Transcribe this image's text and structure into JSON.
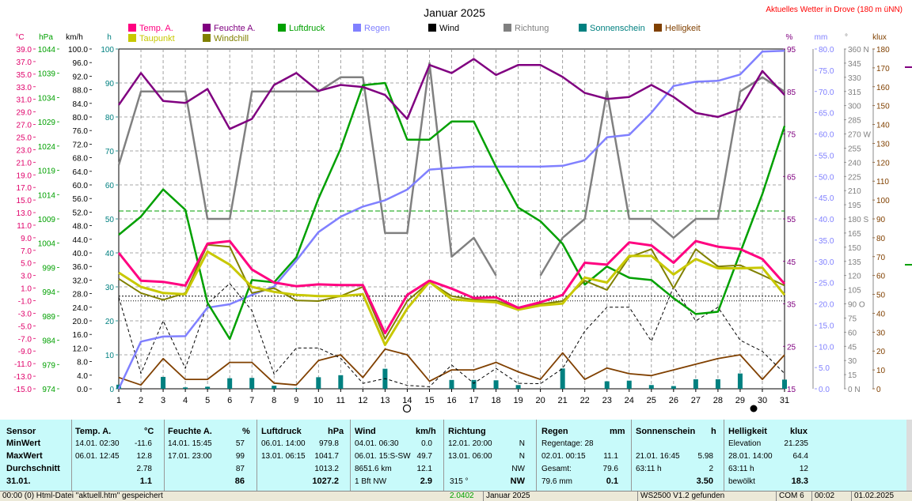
{
  "header": {
    "title": "Januar 2025",
    "station": "Aktuelles Wetter in Drove (180 m üNN)"
  },
  "legend": [
    {
      "label": "Temp. A.",
      "color": "#ff0080"
    },
    {
      "label": "Taupunkt",
      "color": "#c8c800"
    },
    {
      "label": "Feuchte A.",
      "color": "#800080"
    },
    {
      "label": "Windchill",
      "color": "#808000"
    },
    {
      "label": "Luftdruck",
      "color": "#00a000"
    },
    {
      "label": "Regen",
      "color": "#8080ff"
    },
    {
      "label": "Wind",
      "color": "#000000"
    },
    {
      "label": "Richtung",
      "color": "#808080"
    },
    {
      "label": "Sonnenschein",
      "color": "#008080"
    },
    {
      "label": "Helligkeit",
      "color": "#804000"
    }
  ],
  "axes": {
    "left": [
      {
        "unit": "°C",
        "color": "#e0006a",
        "ticks": [
          "39.0",
          "37.0",
          "35.0",
          "33.0",
          "31.0",
          "29.0",
          "27.0",
          "25.0",
          "23.0",
          "21.0",
          "19.0",
          "17.0",
          "15.0",
          "13.0",
          "11.0",
          "9.0",
          "7.0",
          "5.0",
          "3.0",
          "1.0",
          "-1.0",
          "-3.0",
          "-5.0",
          "-7.0",
          "-9.0",
          "-11.0",
          "-13.0",
          "-15.0"
        ]
      },
      {
        "unit": "hPa",
        "color": "#00a000",
        "ticks": [
          "1044",
          "1039",
          "1034",
          "1029",
          "1024",
          "1019",
          "1014",
          "1009",
          "1004",
          "999",
          "994",
          "989",
          "984",
          "979",
          "974"
        ]
      },
      {
        "unit": "km/h",
        "color": "#000000",
        "ticks": [
          "100.0",
          "96.0",
          "92.0",
          "88.0",
          "84.0",
          "80.0",
          "76.0",
          "72.0",
          "68.0",
          "64.0",
          "60.0",
          "56.0",
          "52.0",
          "48.0",
          "44.0",
          "40.0",
          "36.0",
          "32.0",
          "28.0",
          "24.0",
          "20.0",
          "16.0",
          "12.0",
          "8.0",
          "4.0",
          "0.0"
        ]
      },
      {
        "unit": "h",
        "color": "#008080",
        "ticks": [
          "100",
          "90",
          "80",
          "70",
          "60",
          "50",
          "40",
          "30",
          "20",
          "10",
          "0"
        ]
      }
    ],
    "right": [
      {
        "unit": "%",
        "color": "#800080",
        "ticks": [
          "95",
          "85",
          "75",
          "65",
          "55",
          "45",
          "35",
          "25",
          "15"
        ]
      },
      {
        "unit": "mm",
        "color": "#8080ff",
        "ticks": [
          "80.0",
          "75.0",
          "70.0",
          "65.0",
          "60.0",
          "55.0",
          "50.0",
          "45.0",
          "40.0",
          "35.0",
          "30.0",
          "25.0",
          "20.0",
          "15.0",
          "10.0",
          "5.0",
          "0.0"
        ]
      },
      {
        "unit": "°",
        "color": "#808080",
        "ticks": [
          "360 N",
          "345",
          "330",
          "315",
          "300",
          "285",
          "270 W",
          "255",
          "240",
          "225",
          "210",
          "195",
          "180 S",
          "165",
          "150",
          "135",
          "120",
          "105",
          "90 O",
          "75",
          "60",
          "45",
          "30",
          "15",
          "0 N"
        ]
      },
      {
        "unit": "klux",
        "color": "#804000",
        "ticks": [
          "180",
          "170",
          "160",
          "150",
          "140",
          "130",
          "120",
          "110",
          "100",
          "90",
          "80",
          "70",
          "60",
          "50",
          "40",
          "30",
          "20",
          "10",
          "0"
        ]
      }
    ]
  },
  "chart_data": {
    "type": "line",
    "title": "Januar 2025",
    "x": [
      1,
      2,
      3,
      4,
      5,
      6,
      7,
      8,
      9,
      10,
      11,
      12,
      13,
      14,
      15,
      16,
      17,
      18,
      19,
      20,
      21,
      22,
      23,
      24,
      25,
      26,
      27,
      28,
      29,
      30,
      31
    ],
    "series": [
      {
        "name": "Temp. A.",
        "axis": "°C",
        "values": [
          7,
          2.5,
          2.3,
          1.7,
          8.5,
          8.9,
          4.3,
          2.2,
          1.6,
          1.9,
          1.8,
          1.8,
          -6,
          0.2,
          2.5,
          1.2,
          -0.3,
          -0.2,
          -1.9,
          -1,
          0.2,
          5.4,
          5.1,
          8.7,
          8.2,
          5.4,
          8.9,
          8,
          7.6,
          6,
          2
        ]
      },
      {
        "name": "Taupunkt",
        "axis": "°C",
        "values": [
          3.8,
          1.5,
          0.5,
          0.3,
          7.2,
          5.1,
          1.5,
          0.7,
          0.2,
          0,
          0,
          0.3,
          -7.9,
          -2,
          2.3,
          -0.5,
          -0.8,
          -1,
          -2.2,
          -1.5,
          -1.2,
          3,
          2.2,
          6.5,
          6.5,
          3.5,
          6,
          4.5,
          4.5,
          4.6,
          0.2
        ]
      },
      {
        "name": "Windchill",
        "axis": "°C",
        "values": [
          2.8,
          0.5,
          -0.6,
          0.5,
          8.3,
          8,
          0.5,
          1.3,
          -0.7,
          -0.8,
          0,
          1.5,
          -6.9,
          -0.8,
          2.3,
          0,
          -0.6,
          -0.7,
          -2,
          -1.3,
          -0.8,
          2.5,
          1,
          6.3,
          7.6,
          1.3,
          7.6,
          4.8,
          5,
          3.4,
          1.7
        ]
      },
      {
        "name": "Feuchte A.",
        "axis": "%",
        "values": [
          86,
          94,
          87,
          86.5,
          90,
          80,
          82.5,
          91,
          94,
          89.5,
          91,
          90.5,
          88.5,
          82.5,
          96,
          94,
          97.5,
          93.5,
          96,
          96,
          93,
          89,
          87.5,
          88,
          91,
          88,
          84,
          83,
          85,
          94.5,
          88.5
        ]
      },
      {
        "name": "Luftdruck",
        "axis": "hPa",
        "values": [
          1008,
          1012,
          1018,
          1013.5,
          993,
          985,
          998,
          997.5,
          1003,
          1016,
          1027,
          1041,
          1041.5,
          1029,
          1029,
          1033,
          1033,
          1023,
          1014,
          1011,
          1006,
          997,
          1001,
          998.5,
          998,
          994,
          990.5,
          991,
          1004,
          1017,
          1032
        ]
      },
      {
        "name": "Regen",
        "axis": "mm",
        "values": [
          0,
          11.1,
          12.3,
          12.4,
          19.1,
          19.9,
          22.1,
          24.1,
          30.2,
          36.9,
          40.5,
          42.9,
          44.4,
          46.9,
          51.6,
          52,
          52.3,
          52.3,
          52.3,
          52.3,
          52.5,
          53.8,
          59.2,
          59.8,
          65,
          71.3,
          72.3,
          72.5,
          74,
          79.4,
          79.6
        ]
      },
      {
        "name": "Wind",
        "axis": "km/h",
        "values": [
          27,
          4.5,
          20,
          6,
          25,
          31,
          23,
          4.3,
          12,
          12,
          9,
          1.6,
          3,
          1,
          0.6,
          7,
          1.6,
          6,
          1.6,
          1.5,
          6,
          17,
          24,
          24,
          14,
          30,
          20,
          24,
          14.3,
          11,
          4.5
        ]
      },
      {
        "name": "Richtung",
        "axis": "°",
        "values": [
          237,
          315,
          315,
          315,
          180,
          180,
          315,
          315,
          315,
          315,
          330,
          330,
          165,
          165,
          345,
          140,
          160,
          120,
          null,
          120,
          160,
          180,
          315,
          180,
          180,
          160,
          180,
          180,
          315,
          330,
          315
        ]
      },
      {
        "name": "Sonnenschein",
        "axis": "h",
        "values": [
          1.2,
          0,
          3.5,
          0.4,
          0.6,
          3.1,
          3.2,
          0.9,
          0.2,
          3.4,
          4,
          0,
          5.9,
          0,
          0,
          2.6,
          2.6,
          2.5,
          1.1,
          0,
          5.98,
          0,
          2.2,
          2.4,
          1.1,
          0.8,
          2.8,
          2.8,
          4.5,
          0,
          2.7
        ]
      },
      {
        "name": "Helligkeit",
        "axis": "klux",
        "values": [
          6,
          2,
          16,
          5,
          5,
          14,
          14,
          3,
          2,
          15,
          18,
          6,
          21,
          18,
          4,
          10,
          10,
          14,
          9,
          5,
          19,
          5,
          11,
          8,
          7,
          10,
          13,
          16,
          18,
          5,
          18
        ]
      }
    ],
    "ylim_temp": [
      -15,
      40
    ],
    "ylim_pressure": [
      974,
      1049
    ],
    "ylim_wind": [
      0,
      100
    ],
    "ylim_humidity": [
      15,
      100
    ],
    "ylim_rain": [
      0,
      80
    ],
    "ylim_direction": [
      0,
      360
    ],
    "ylim_lux": [
      0,
      180
    ],
    "freezing_line_temp": 0,
    "reference_pressure": 1013.25,
    "grid": true
  },
  "table": {
    "sensor": {
      "h": "Sensor",
      "r1": "MinWert",
      "r2": "MaxWert",
      "r3": "Durchschnitt",
      "r4": "31.01."
    },
    "temp": {
      "h": "Temp. A.",
      "u": "°C",
      "r1d": "14.01.  02:30",
      "r1v": "-11.6",
      "r2d": "06.01.  12:45",
      "r2v": "12.8",
      "r3v": "2.78",
      "r4v": "1.1"
    },
    "hum": {
      "h": "Feuchte A.",
      "u": "%",
      "r1d": "14.01.  15:45",
      "r1v": "57",
      "r2d": "17.01.  23:00",
      "r2v": "99",
      "r3v": "87",
      "r4v": "86"
    },
    "press": {
      "h": "Luftdruck",
      "u": "hPa",
      "r1d": "06.01.  14:00",
      "r1v": "979.8",
      "r2d": "13.01.  06:15",
      "r2v": "1041.7",
      "r3v": "1013.2",
      "r4v": "1027.2"
    },
    "wind": {
      "h": "Wind",
      "u": "km/h",
      "r1d": "04.01.  06:30",
      "r1v": "0.0",
      "r2d": "06.01.  15:S-SW",
      "r2v": "49.7",
      "r3d": "8651.6 km",
      "r3v": "12.1",
      "r4d": "1 Bft NW",
      "r4v": "2.9"
    },
    "dir": {
      "h": "Richtung",
      "r1d": "12.01.  20:00",
      "r1v": "N",
      "r2d": "13.01.  06:00",
      "r2v": "N",
      "r3v": "NW",
      "r4d": "315 °",
      "r4v": "NW"
    },
    "rain": {
      "h": "Regen",
      "u": "mm",
      "r1d": "Regentage: 28",
      "r2d": "02.01.  00:15",
      "r2v": "11.1",
      "r3d": "Gesamt:",
      "r3v": "79.6",
      "r4d": "79.6 mm",
      "r4v": "0.1"
    },
    "sun": {
      "h": "Sonnenschein",
      "u": "h",
      "r2d": "21.01.  16:45",
      "r2v": "5.98",
      "r3d": "63:11 h",
      "r3v": "2",
      "r4v": "3.50"
    },
    "lux": {
      "h": "Helligkeit",
      "u": "klux",
      "r1d": "Elevation",
      "r1v": "21.235",
      "r2d": "28.01.  14:00",
      "r2v": "64.4",
      "r3d": "63:11 h",
      "r3v": "12",
      "r4d": "bewölkt",
      "r4v": "18.3"
    }
  },
  "status": {
    "s1": "00:00  (0)  Html-Datei \"aktuell.htm\" gespeichert",
    "s2": "2.0402",
    "s3": "Januar 2025",
    "s4": "WS2500 V1.2 gefunden",
    "s5": "COM 6",
    "s6": "00:02",
    "s7": "01.02.2025"
  }
}
